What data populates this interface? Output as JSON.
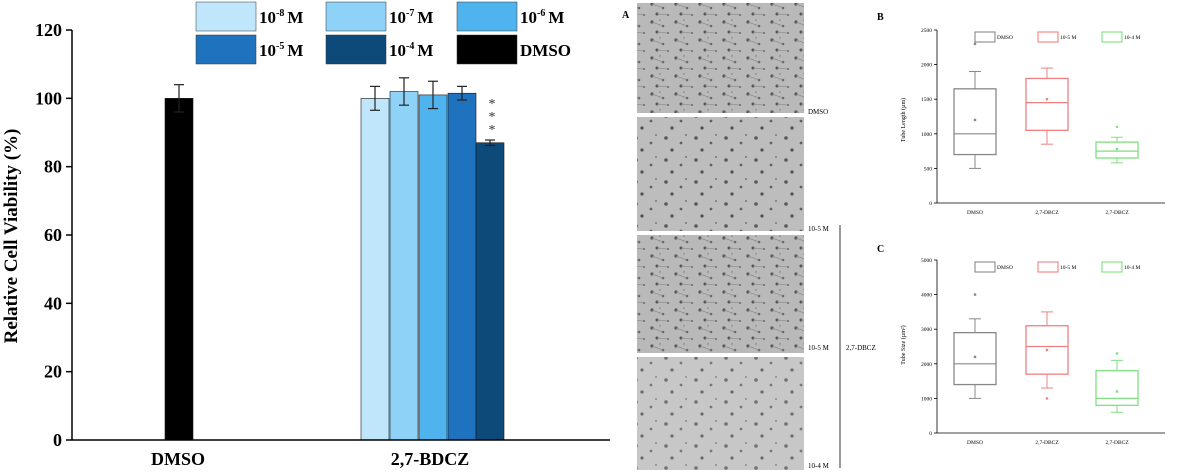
{
  "colors": {
    "e8": "#bfe6fb",
    "e7": "#8ed3f7",
    "e6": "#4fb3ee",
    "e5": "#1f72bd",
    "e4": "#0d4a7a",
    "dmso": "#000000",
    "box_dmso": "#888888",
    "box_low": "#f08080",
    "box_high": "#7ee07e"
  },
  "chart_data": [
    {
      "id": "viability",
      "type": "bar",
      "ylabel": "Relative Cell Viability (%)",
      "ylim": [
        0,
        120
      ],
      "yticks": [
        0,
        20,
        40,
        60,
        80,
        100,
        120
      ],
      "categories": [
        "DMSO",
        "2,7-BDCZ"
      ],
      "legend": [
        {
          "base": "10",
          "exp": "-8",
          "unit": "M",
          "color_key": "e8"
        },
        {
          "base": "10",
          "exp": "-7",
          "unit": "M",
          "color_key": "e7"
        },
        {
          "base": "10",
          "exp": "-6",
          "unit": "M",
          "color_key": "e6"
        },
        {
          "base": "10",
          "exp": "-5",
          "unit": "M",
          "color_key": "e5"
        },
        {
          "base": "10",
          "exp": "-4",
          "unit": "M",
          "color_key": "e4"
        },
        {
          "label": "DMSO",
          "color_key": "dmso"
        }
      ],
      "bars": [
        {
          "category": "DMSO",
          "color_key": "dmso",
          "value": 100,
          "error": 4
        },
        {
          "category": "2,7-BDCZ",
          "color_key": "e8",
          "value": 100,
          "error": 3.5
        },
        {
          "category": "2,7-BDCZ",
          "color_key": "e7",
          "value": 102,
          "error": 4
        },
        {
          "category": "2,7-BDCZ",
          "color_key": "e6",
          "value": 101,
          "error": 4
        },
        {
          "category": "2,7-BDCZ",
          "color_key": "e5",
          "value": 101.5,
          "error": 2
        },
        {
          "category": "2,7-BDCZ",
          "color_key": "e4",
          "value": 87,
          "error": 0.8,
          "significance": "***"
        }
      ]
    },
    {
      "id": "box-b",
      "type": "box",
      "panel": "B",
      "ylabel": "Tube Length (µm)",
      "ylim": [
        0,
        2500
      ],
      "yticks": [
        0,
        500,
        1000,
        1500,
        2000,
        2500
      ],
      "categories": [
        "DMSO",
        "2,7-DBCZ",
        "2,7-DBCZ"
      ],
      "legend": [
        {
          "label": "DMSO",
          "color_key": "box_dmso"
        },
        {
          "label": "10-5 M",
          "color_key": "box_low"
        },
        {
          "label": "10-4 M",
          "color_key": "box_high"
        }
      ],
      "boxes": [
        {
          "color_key": "box_dmso",
          "min": 500,
          "q1": 700,
          "median": 1000,
          "mean": 1200,
          "q3": 1650,
          "max": 1900,
          "outliers": [
            2300
          ]
        },
        {
          "color_key": "box_low",
          "min": 850,
          "q1": 1050,
          "median": 1450,
          "mean": 1500,
          "q3": 1800,
          "max": 1950,
          "outliers": []
        },
        {
          "color_key": "box_high",
          "min": 580,
          "q1": 650,
          "median": 750,
          "mean": 780,
          "q3": 880,
          "max": 950,
          "outliers": [
            1100
          ]
        }
      ]
    },
    {
      "id": "box-c",
      "type": "box",
      "panel": "C",
      "ylabel": "Tube Size (µm²)",
      "ylim": [
        0,
        5000
      ],
      "yticks": [
        0,
        1000,
        2000,
        3000,
        4000,
        5000
      ],
      "categories": [
        "DMSO",
        "2,7-DBCZ",
        "2,7-DBCZ"
      ],
      "legend": [
        {
          "label": "DMSO",
          "color_key": "box_dmso"
        },
        {
          "label": "10-5 M",
          "color_key": "box_low"
        },
        {
          "label": "10-4 M",
          "color_key": "box_high"
        }
      ],
      "boxes": [
        {
          "color_key": "box_dmso",
          "min": 1000,
          "q1": 1400,
          "median": 2000,
          "mean": 2200,
          "q3": 2900,
          "max": 3300,
          "outliers": [
            4000
          ]
        },
        {
          "color_key": "box_low",
          "min": 1300,
          "q1": 1700,
          "median": 2500,
          "mean": 2400,
          "q3": 3100,
          "max": 3500,
          "outliers": [
            1000
          ]
        },
        {
          "color_key": "box_high",
          "min": 600,
          "q1": 800,
          "median": 1000,
          "mean": 1200,
          "q3": 1800,
          "max": 2100,
          "outliers": [
            2300
          ]
        }
      ]
    }
  ],
  "micrographs": {
    "panel": "A",
    "labels": {
      "dmso": "DMSO",
      "low": "10-5 M",
      "high": "10-4 M",
      "mid": "10-5 M",
      "group": "2,7-DBCZ"
    }
  }
}
